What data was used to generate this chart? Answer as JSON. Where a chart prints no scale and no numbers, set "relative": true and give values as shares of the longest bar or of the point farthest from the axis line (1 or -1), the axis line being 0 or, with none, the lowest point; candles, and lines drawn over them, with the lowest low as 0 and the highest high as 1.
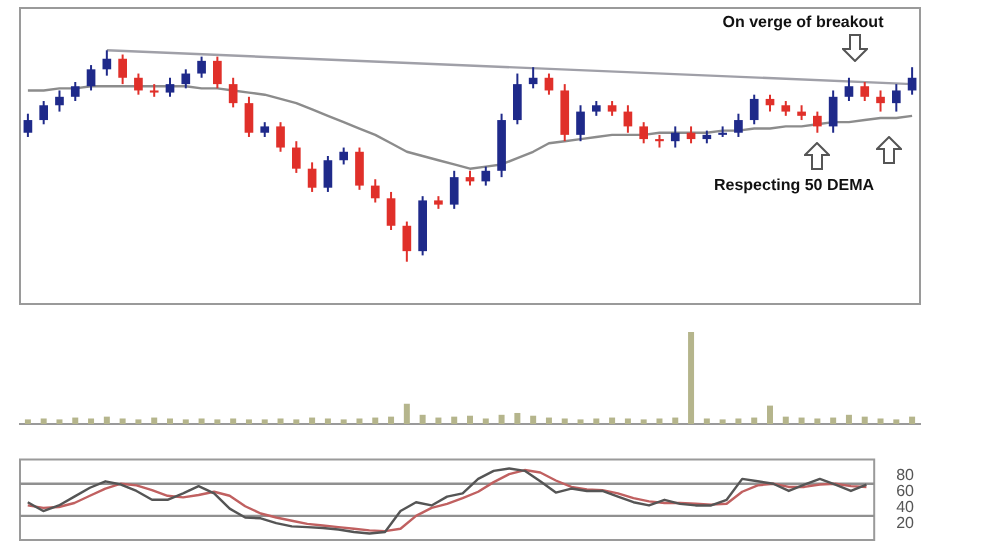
{
  "chart_data": [
    {
      "type": "candlestick",
      "relative": true,
      "tick_labels": false,
      "grid": false,
      "legend": false,
      "categories": [
        null,
        null,
        null,
        null,
        null,
        null,
        null,
        null,
        null,
        null,
        null,
        null,
        null,
        null,
        null,
        null,
        null,
        null,
        null,
        null,
        null,
        null,
        null,
        null,
        null,
        null,
        null,
        null,
        null,
        null,
        null,
        null,
        null,
        null,
        null,
        null,
        null,
        null,
        null,
        null,
        null,
        null,
        null,
        null,
        null,
        null,
        null,
        null,
        null,
        null,
        null,
        null,
        null,
        null,
        null,
        null,
        null
      ],
      "ohlc": [
        [
          0.61,
          0.7,
          0.59,
          0.67
        ],
        [
          0.67,
          0.76,
          0.65,
          0.74
        ],
        [
          0.74,
          0.81,
          0.71,
          0.78
        ],
        [
          0.78,
          0.85,
          0.76,
          0.83
        ],
        [
          0.83,
          0.93,
          0.81,
          0.91
        ],
        [
          0.91,
          1.0,
          0.88,
          0.96
        ],
        [
          0.96,
          0.98,
          0.84,
          0.87
        ],
        [
          0.87,
          0.89,
          0.79,
          0.81
        ],
        [
          0.81,
          0.84,
          0.78,
          0.8
        ],
        [
          0.8,
          0.87,
          0.78,
          0.84
        ],
        [
          0.84,
          0.91,
          0.82,
          0.89
        ],
        [
          0.89,
          0.97,
          0.87,
          0.95
        ],
        [
          0.95,
          0.97,
          0.82,
          0.84
        ],
        [
          0.84,
          0.87,
          0.73,
          0.75
        ],
        [
          0.75,
          0.78,
          0.59,
          0.61
        ],
        [
          0.61,
          0.66,
          0.59,
          0.64
        ],
        [
          0.64,
          0.66,
          0.52,
          0.54
        ],
        [
          0.54,
          0.57,
          0.42,
          0.44
        ],
        [
          0.44,
          0.47,
          0.33,
          0.35
        ],
        [
          0.35,
          0.5,
          0.33,
          0.48
        ],
        [
          0.48,
          0.54,
          0.46,
          0.52
        ],
        [
          0.52,
          0.54,
          0.34,
          0.36
        ],
        [
          0.36,
          0.39,
          0.28,
          0.3
        ],
        [
          0.3,
          0.33,
          0.15,
          0.17
        ],
        [
          0.17,
          0.19,
          0,
          0.05
        ],
        [
          0.05,
          0.31,
          0.03,
          0.29
        ],
        [
          0.29,
          0.31,
          0.25,
          0.27
        ],
        [
          0.27,
          0.43,
          0.25,
          0.4
        ],
        [
          0.4,
          0.43,
          0.36,
          0.38
        ],
        [
          0.38,
          0.45,
          0.36,
          0.43
        ],
        [
          0.43,
          0.7,
          0.4,
          0.67
        ],
        [
          0.67,
          0.89,
          0.65,
          0.84
        ],
        [
          0.84,
          0.92,
          0.82,
          0.87
        ],
        [
          0.87,
          0.89,
          0.79,
          0.81
        ],
        [
          0.81,
          0.84,
          0.57,
          0.6
        ],
        [
          0.6,
          0.74,
          0.57,
          0.71
        ],
        [
          0.71,
          0.76,
          0.69,
          0.74
        ],
        [
          0.74,
          0.76,
          0.69,
          0.71
        ],
        [
          0.71,
          0.74,
          0.61,
          0.64
        ],
        [
          0.64,
          0.66,
          0.56,
          0.58
        ],
        [
          0.58,
          0.6,
          0.54,
          0.57
        ],
        [
          0.57,
          0.64,
          0.54,
          0.61
        ],
        [
          0.61,
          0.64,
          0.56,
          0.58
        ],
        [
          0.58,
          0.62,
          0.56,
          0.6
        ],
        [
          0.6,
          0.64,
          0.59,
          0.61
        ],
        [
          0.61,
          0.7,
          0.59,
          0.67
        ],
        [
          0.67,
          0.79,
          0.65,
          0.77
        ],
        [
          0.77,
          0.79,
          0.71,
          0.74
        ],
        [
          0.74,
          0.76,
          0.69,
          0.71
        ],
        [
          0.71,
          0.74,
          0.67,
          0.69
        ],
        [
          0.69,
          0.71,
          0.61,
          0.64
        ],
        [
          0.64,
          0.81,
          0.61,
          0.78
        ],
        [
          0.78,
          0.87,
          0.76,
          0.83
        ],
        [
          0.83,
          0.85,
          0.76,
          0.78
        ],
        [
          0.78,
          0.81,
          0.71,
          0.75
        ],
        [
          0.75,
          0.84,
          0.71,
          0.81
        ],
        [
          0.81,
          0.92,
          0.79,
          0.87
        ]
      ],
      "colors": [
        "#1f2a8a",
        "#1f2a8a",
        "#1f2a8a",
        "#1f2a8a",
        "#1f2a8a",
        "#1f2a8a",
        "#e0302a",
        "#e0302a",
        "#e0302a",
        "#1f2a8a",
        "#1f2a8a",
        "#1f2a8a",
        "#e0302a",
        "#e0302a",
        "#e0302a",
        "#1f2a8a",
        "#e0302a",
        "#e0302a",
        "#e0302a",
        "#1f2a8a",
        "#1f2a8a",
        "#e0302a",
        "#e0302a",
        "#e0302a",
        "#e0302a",
        "#1f2a8a",
        "#e0302a",
        "#1f2a8a",
        "#e0302a",
        "#1f2a8a",
        "#1f2a8a",
        "#1f2a8a",
        "#1f2a8a",
        "#e0302a",
        "#e0302a",
        "#1f2a8a",
        "#1f2a8a",
        "#e0302a",
        "#e0302a",
        "#e0302a",
        "#e0302a",
        "#1f2a8a",
        "#e0302a",
        "#1f2a8a",
        "#1f2a8a",
        "#1f2a8a",
        "#1f2a8a",
        "#e0302a",
        "#e0302a",
        "#e0302a",
        "#e0302a",
        "#1f2a8a",
        "#1f2a8a",
        "#e0302a",
        "#e0302a",
        "#1f2a8a",
        "#1f2a8a"
      ],
      "series": [
        {
          "type": "line",
          "color": "#8c8c8c",
          "values": [
            0.81,
            0.81,
            0.82,
            0.82,
            0.83,
            0.83,
            0.83,
            0.83,
            0.83,
            0.83,
            0.83,
            0.82,
            0.82,
            0.81,
            0.8,
            0.79,
            0.77,
            0.75,
            0.72,
            0.69,
            0.66,
            0.63,
            0.6,
            0.56,
            0.52,
            0.5,
            0.48,
            0.46,
            0.44,
            0.45,
            0.46,
            0.49,
            0.52,
            0.56,
            0.57,
            0.58,
            0.59,
            0.6,
            0.6,
            0.6,
            0.61,
            0.61,
            0.61,
            0.61,
            0.62,
            0.62,
            0.63,
            0.63,
            0.64,
            0.64,
            0.65,
            0.66,
            0.66,
            0.67,
            0.68,
            0.68,
            0.69
          ]
        },
        {
          "type": "line",
          "color": "#a0a0a8",
          "values": [
            null,
            null,
            null,
            null,
            null,
            1.0,
            null,
            null,
            null,
            null,
            null,
            null,
            null,
            null,
            null,
            null,
            null,
            null,
            null,
            null,
            null,
            null,
            null,
            null,
            null,
            null,
            null,
            null,
            null,
            null,
            null,
            null,
            null,
            null,
            null,
            null,
            null,
            null,
            null,
            null,
            null,
            null,
            null,
            null,
            null,
            null,
            null,
            null,
            null,
            null,
            null,
            null,
            null,
            null,
            null,
            null,
            0.84
          ]
        }
      ],
      "annotations": [
        "On verge of breakout",
        "Respecting 50 DEMA"
      ]
    },
    {
      "type": "bar",
      "relative": true,
      "tick_labels": false,
      "grid": false,
      "legend": false,
      "color": "#b5b58c",
      "categories": [
        null,
        null,
        null,
        null,
        null,
        null,
        null,
        null,
        null,
        null,
        null,
        null,
        null,
        null,
        null,
        null,
        null,
        null,
        null,
        null,
        null,
        null,
        null,
        null,
        null,
        null,
        null,
        null,
        null,
        null,
        null,
        null,
        null,
        null,
        null,
        null,
        null,
        null,
        null,
        null,
        null,
        null,
        null,
        null,
        null,
        null,
        null,
        null,
        null,
        null,
        null,
        null,
        null,
        null,
        null,
        null,
        null
      ],
      "values": [
        0.05,
        0.06,
        0.05,
        0.07,
        0.06,
        0.08,
        0.06,
        0.05,
        0.07,
        0.06,
        0.05,
        0.06,
        0.05,
        0.06,
        0.05,
        0.05,
        0.06,
        0.05,
        0.07,
        0.06,
        0.05,
        0.06,
        0.07,
        0.08,
        0.22,
        0.1,
        0.07,
        0.08,
        0.09,
        0.06,
        0.1,
        0.12,
        0.09,
        0.07,
        0.06,
        0.05,
        0.06,
        0.07,
        0.06,
        0.05,
        0.06,
        0.07,
        1.0,
        0.06,
        0.05,
        0.06,
        0.07,
        0.2,
        0.08,
        0.07,
        0.06,
        0.07,
        0.1,
        0.08,
        0.06,
        0.05,
        0.08
      ]
    },
    {
      "type": "line",
      "tick_labels": "y",
      "grid": false,
      "legend": false,
      "ylim": [
        0,
        100
      ],
      "yticks": [
        20,
        40,
        60,
        80
      ],
      "categories": [
        null,
        null,
        null,
        null,
        null,
        null,
        null,
        null,
        null,
        null,
        null,
        null,
        null,
        null,
        null,
        null,
        null,
        null,
        null,
        null,
        null,
        null,
        null,
        null,
        null,
        null,
        null,
        null,
        null,
        null,
        null,
        null,
        null,
        null,
        null,
        null,
        null,
        null,
        null,
        null,
        null,
        null,
        null,
        null,
        null,
        null,
        null,
        null,
        null,
        null,
        null,
        null,
        null,
        null,
        null
      ],
      "series": [
        {
          "color": "#555555",
          "values": [
            47,
            36,
            43,
            54,
            65,
            73,
            69,
            61,
            50,
            50,
            58,
            67,
            58,
            39,
            28,
            27,
            21,
            17,
            16,
            15,
            13,
            10,
            8,
            10,
            36,
            47,
            43,
            54,
            58,
            76,
            86,
            89,
            86,
            73,
            59,
            64,
            61,
            61,
            54,
            47,
            43,
            50,
            45,
            43,
            43,
            50,
            76,
            73,
            70,
            61,
            69,
            76,
            69,
            61,
            69
          ]
        },
        {
          "color": "#c06060",
          "values": [
            43,
            40,
            41,
            46,
            55,
            64,
            70,
            68,
            62,
            55,
            53,
            56,
            60,
            55,
            42,
            33,
            28,
            24,
            20,
            18,
            16,
            14,
            12,
            11,
            14,
            30,
            40,
            45,
            52,
            60,
            72,
            82,
            87,
            84,
            74,
            66,
            63,
            62,
            58,
            52,
            48,
            46,
            46,
            45,
            44,
            45,
            60,
            68,
            70,
            66,
            66,
            69,
            70,
            67,
            66
          ]
        }
      ],
      "ref_lines": [
        {
          "axis": "y",
          "value": 70,
          "color": "#909090"
        },
        {
          "axis": "y",
          "value": 30,
          "color": "#909090"
        }
      ]
    }
  ]
}
